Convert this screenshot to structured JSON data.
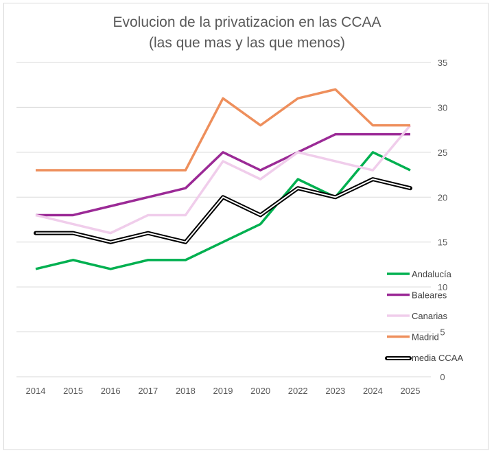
{
  "chart_data": {
    "type": "line",
    "title": "Evolucion de la privatizacion en las CCAA",
    "subtitle": "(las que mas y las que menos)",
    "categories": [
      "2014",
      "2015",
      "2016",
      "2017",
      "2018",
      "2019",
      "2020",
      "2022",
      "2023",
      "2024",
      "2025"
    ],
    "ylim": [
      0,
      35
    ],
    "yticks": [
      "0",
      "5",
      "10",
      "15",
      "20",
      "25",
      "30",
      "35"
    ],
    "grid": true,
    "y_axis_side": "right",
    "legend_position": "right",
    "series": [
      {
        "name": "Andalucía",
        "color": "#00b050",
        "values": [
          12,
          13,
          12,
          13,
          13,
          15,
          17,
          22,
          20,
          25,
          23
        ]
      },
      {
        "name": "Baleares",
        "color": "#9b2a96",
        "values": [
          18,
          18,
          19,
          20,
          21,
          25,
          23,
          25,
          27,
          27,
          27
        ]
      },
      {
        "name": "Canarias",
        "color": "#f0cdeb",
        "values": [
          18,
          17,
          16,
          18,
          18,
          24,
          22,
          25,
          24,
          23,
          28
        ]
      },
      {
        "name": "Madrid",
        "color": "#ee8f5c",
        "values": [
          23,
          23,
          23,
          23,
          23,
          31,
          28,
          31,
          32,
          28,
          28
        ]
      },
      {
        "name": "media CCAA",
        "color": "#000000",
        "style": "double",
        "values": [
          16,
          16,
          15,
          16,
          15,
          20,
          18,
          21,
          20,
          22,
          21
        ]
      }
    ]
  }
}
